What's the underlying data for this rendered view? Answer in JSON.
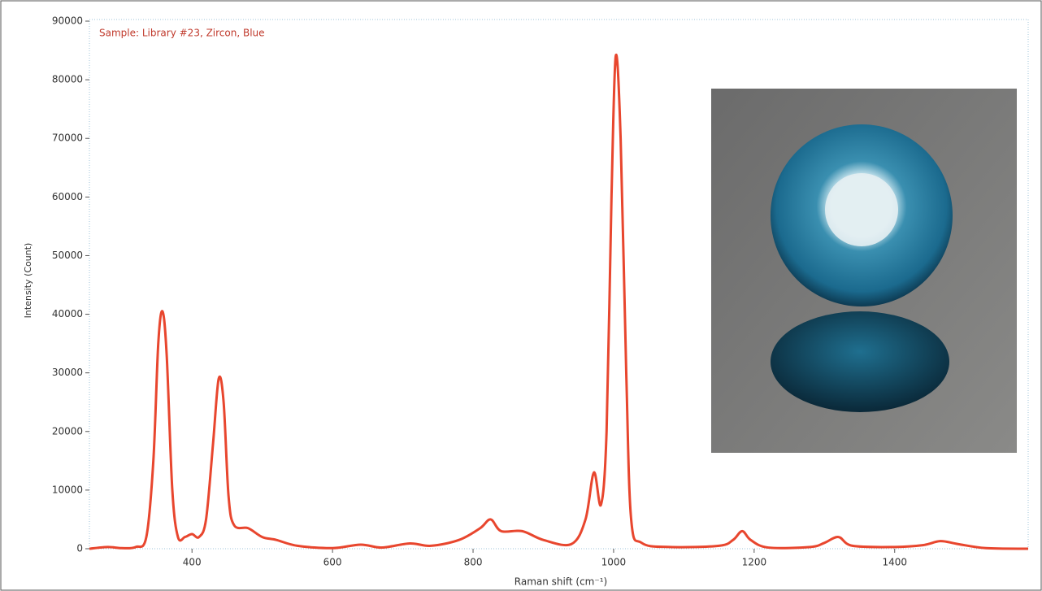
{
  "chart_data": {
    "type": "line",
    "title": "Sample: Library #23, Zircon, Blue",
    "x_label": "Raman shift (cm⁻¹)",
    "y_label": "Intensity (Count)",
    "x": [
      254,
      280,
      300,
      320,
      335,
      345,
      352,
      358,
      364,
      372,
      380,
      390,
      400,
      410,
      420,
      430,
      438,
      445,
      452,
      460,
      480,
      500,
      520,
      550,
      600,
      640,
      670,
      710,
      740,
      780,
      810,
      825,
      840,
      870,
      900,
      940,
      960,
      972,
      982,
      990,
      997,
      1003,
      1010,
      1018,
      1025,
      1040,
      1080,
      1150,
      1170,
      1183,
      1195,
      1220,
      1280,
      1300,
      1320,
      1340,
      1400,
      1440,
      1465,
      1490,
      1530,
      1590
    ],
    "values": [
      0,
      300,
      100,
      300,
      2000,
      15000,
      35000,
      40500,
      33000,
      10000,
      2000,
      2000,
      2500,
      2000,
      5000,
      18000,
      29000,
      25000,
      9000,
      4000,
      3500,
      2000,
      1500,
      500,
      100,
      700,
      200,
      900,
      500,
      1500,
      3500,
      5000,
      3000,
      3000,
      1500,
      800,
      5000,
      13000,
      7500,
      20000,
      60000,
      84000,
      70000,
      30000,
      5000,
      1000,
      300,
      500,
      1500,
      3000,
      1500,
      200,
      300,
      1000,
      2000,
      500,
      300,
      600,
      1300,
      800,
      100,
      0
    ],
    "color": "#e8462e",
    "xlim": [
      254,
      1590
    ],
    "ylim": [
      0,
      90000
    ],
    "xticks": [
      400,
      600,
      800,
      1000,
      1200,
      1400
    ],
    "yticks": [
      0,
      10000,
      20000,
      30000,
      40000,
      50000,
      60000,
      70000,
      80000,
      90000
    ]
  }
}
